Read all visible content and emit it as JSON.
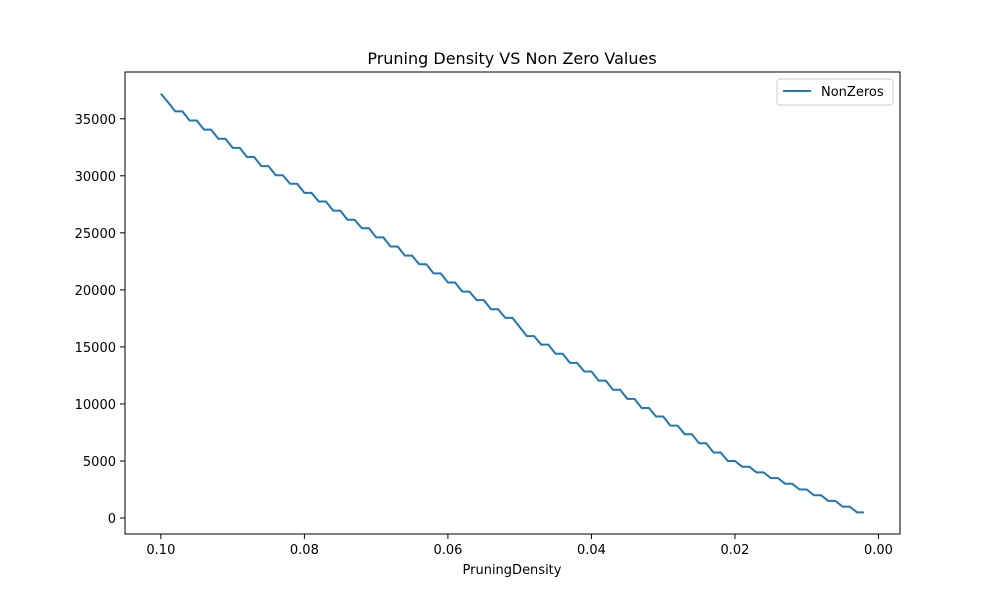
{
  "chart_data": {
    "type": "line",
    "title": "Pruning Density VS Non Zero Values",
    "xlabel": "PruningDensity",
    "ylabel": "",
    "xlim": [
      0.105,
      -0.003
    ],
    "ylim": [
      -1400,
      39100
    ],
    "x_reversed": true,
    "x_ticks": [
      0.1,
      0.08,
      0.06,
      0.04,
      0.02,
      0.0
    ],
    "x_tick_labels": [
      "0.10",
      "0.08",
      "0.06",
      "0.04",
      "0.02",
      "0.00"
    ],
    "y_ticks": [
      0,
      5000,
      10000,
      15000,
      20000,
      25000,
      30000,
      35000
    ],
    "y_tick_labels": [
      "0",
      "5000",
      "10000",
      "15000",
      "20000",
      "25000",
      "30000",
      "35000"
    ],
    "grid": false,
    "legend_position": "top-right",
    "series": [
      {
        "name": "NonZeros",
        "color": "#1f77b4",
        "x": [
          0.1,
          0.099,
          0.098,
          0.097,
          0.096,
          0.095,
          0.094,
          0.093,
          0.092,
          0.091,
          0.09,
          0.089,
          0.088,
          0.087,
          0.086,
          0.085,
          0.084,
          0.083,
          0.082,
          0.081,
          0.08,
          0.079,
          0.078,
          0.077,
          0.076,
          0.075,
          0.074,
          0.073,
          0.072,
          0.071,
          0.07,
          0.069,
          0.068,
          0.067,
          0.066,
          0.065,
          0.064,
          0.063,
          0.062,
          0.061,
          0.06,
          0.059,
          0.058,
          0.057,
          0.056,
          0.055,
          0.054,
          0.053,
          0.052,
          0.051,
          0.05,
          0.049,
          0.048,
          0.047,
          0.046,
          0.045,
          0.044,
          0.043,
          0.042,
          0.041,
          0.04,
          0.039,
          0.038,
          0.037,
          0.036,
          0.035,
          0.034,
          0.033,
          0.032,
          0.031,
          0.03,
          0.029,
          0.028,
          0.027,
          0.026,
          0.025,
          0.024,
          0.023,
          0.022,
          0.021,
          0.02,
          0.019,
          0.018,
          0.017,
          0.016,
          0.015,
          0.014,
          0.013,
          0.012,
          0.011,
          0.01,
          0.009,
          0.008,
          0.007,
          0.006,
          0.005,
          0.004,
          0.003,
          0.002
        ],
        "y": [
          37200,
          36450,
          35650,
          35650,
          34850,
          34850,
          34050,
          34050,
          33250,
          33250,
          32450,
          32450,
          31650,
          31650,
          30850,
          30850,
          30050,
          30050,
          29300,
          29300,
          28500,
          28500,
          27750,
          27750,
          26950,
          26950,
          26150,
          26150,
          25400,
          25400,
          24600,
          24600,
          23800,
          23800,
          23000,
          23000,
          22250,
          22250,
          21450,
          21450,
          20650,
          20650,
          19850,
          19850,
          19100,
          19100,
          18300,
          18300,
          17550,
          17550,
          16750,
          15950,
          15950,
          15200,
          15200,
          14400,
          14400,
          13600,
          13600,
          12850,
          12850,
          12050,
          12050,
          11250,
          11250,
          10450,
          10450,
          9650,
          9650,
          8900,
          8900,
          8100,
          8100,
          7350,
          7350,
          6550,
          6550,
          5750,
          5750,
          5000,
          5000,
          4500,
          4500,
          4000,
          4000,
          3500,
          3500,
          3000,
          3000,
          2500,
          2500,
          2000,
          2000,
          1500,
          1500,
          1000,
          1000,
          500,
          500
        ]
      }
    ]
  }
}
